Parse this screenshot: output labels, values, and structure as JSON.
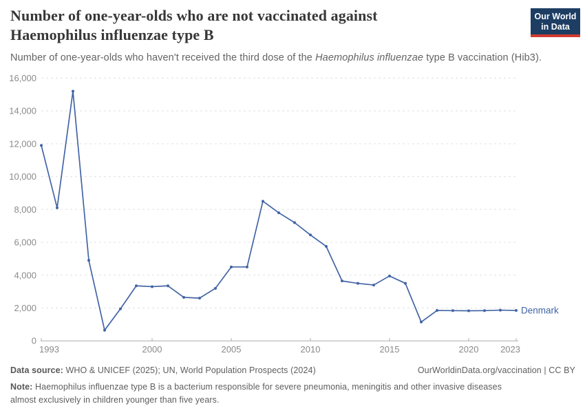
{
  "header": {
    "title_line1": "Number of one-year-olds who are not vaccinated against",
    "title_line2": "Haemophilus influenzae type B",
    "subtitle_prefix": "Number of one-year-olds who haven't received the third dose of the ",
    "subtitle_italic": "Haemophilus influenzae",
    "subtitle_suffix": " type B vaccination (Hib3).",
    "logo": {
      "line1": "Our World",
      "line2": "in Data",
      "bg": "#1d3d63",
      "accent": "#d13b33"
    }
  },
  "chart_data": {
    "type": "line",
    "title": "Number of one-year-olds who are not vaccinated against Haemophilus influenzae type B",
    "xlabel": "",
    "ylabel": "",
    "xlim": [
      1993,
      2023
    ],
    "ylim": [
      0,
      16000
    ],
    "x_ticks": [
      1993,
      2000,
      2005,
      2010,
      2015,
      2020,
      2023
    ],
    "y_ticks": [
      0,
      2000,
      4000,
      6000,
      8000,
      10000,
      12000,
      14000,
      16000
    ],
    "grid": "horizontal-dashed",
    "legend_position": "end-of-line-label",
    "series": [
      {
        "name": "Denmark",
        "color": "#4264a5",
        "x": [
          1993,
          1994,
          1995,
          1996,
          1997,
          1998,
          1999,
          2000,
          2001,
          2002,
          2003,
          2004,
          2005,
          2006,
          2007,
          2008,
          2009,
          2010,
          2011,
          2012,
          2013,
          2014,
          2015,
          2016,
          2017,
          2018,
          2019,
          2020,
          2021,
          2022,
          2023
        ],
        "values": [
          11900,
          8100,
          15200,
          4900,
          650,
          1950,
          3350,
          3300,
          3350,
          2650,
          2600,
          3200,
          4500,
          4500,
          8500,
          7800,
          7200,
          6450,
          5750,
          3650,
          3500,
          3400,
          3950,
          3500,
          1150,
          1850,
          1840,
          1830,
          1840,
          1870,
          1850
        ]
      }
    ]
  },
  "footer": {
    "datasource_label": "Data source:",
    "datasource_text": " WHO & UNICEF (2025); UN, World Population Prospects (2024)",
    "license_text": "OurWorldinData.org/vaccination | CC BY",
    "note_label": "Note:",
    "note_text": " Haemophilus influenzae type B is a bacterium responsible for severe pneumonia, meningitis and other invasive diseases almost exclusively in children younger than five years."
  },
  "colors": {
    "title_text": "#383838",
    "subtitle_text": "#636363",
    "axis_label": "#8a8a8a",
    "gridline": "#e0e0e0",
    "axis_line": "#ababab",
    "footer_text": "#5e5e5e",
    "series_blue": "#4264a5"
  }
}
